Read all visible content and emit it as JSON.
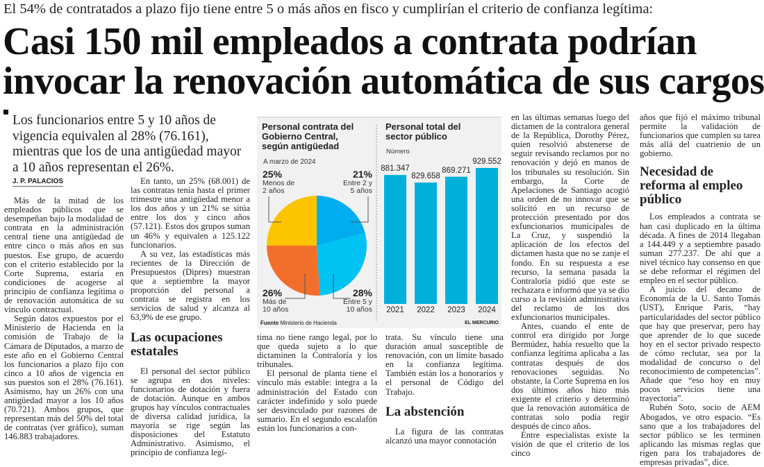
{
  "kicker": "El 54% de contratados a plazo fijo tiene entre 5 o más años en fisco y cumplirían el criterio de confianza legítima:",
  "title": [
    "Casi 150 mil empleados a contrata podrían",
    "invocar la renovación automática de sus cargos"
  ],
  "deck": "Los funcionarios entre 5 y 10 años de vigencia equivalen al 28% (76.161), mientras que los de una antigüedad mayor a 10 años representan el 26%.",
  "byline": "J. P. PALACIOS",
  "col1": [
    "Más de la mitad de los empleados públicos que se desempeñan bajo la modalidad de contrata en la administración central tiene una antigüedad de entre cinco o más años en sus puestos. Ese grupo, de acuerdo con el criterio establecido por la Corte Suprema, estaría en condiciones de acogerse al principio de confianza legítima o de renovación automática de su vínculo contractual.",
    "Según datos expuestos por el Ministerio de Hacienda en la comisión de Trabajo de la Cámara de Diputados, a marzo de este año en el Gobierno Central los funcionarios a plazo fijo con cinco a 10 años de vigencia en sus puestos son el 28% (76.161). Asimismo, hay un 26% con una antigüedad mayor a los 10 años (70.721). Ambos grupos, que representan más del 50% del total de contratas (ver gráfico), suman 146.883 trabajadores."
  ],
  "col2": {
    "p": [
      "En tanto, un 25% (68.001) de las contratas tenía hasta el primer trimestre una antigüedad menor a los dos años y un 21% se sitúa entre los dos y cinco años (57.121). Estos dos grupos suman un 46% y equivalen a 125.122 funcionarios.",
      "A su vez, las estadísticas más recientes de la Dirección de Presupuestos (Dipres) muestran que a septiembre la mayor proporción del personal a contrata se registra en los servicios de salud y alcanza al 63,9% de ese grupo."
    ],
    "heading": "Las ocupaciones estatales",
    "p2": "El personal del sector público se agrupa en dos niveles: funcionarios de dotación y fuera de dotación. Aunque en ambos grupos hay vínculos contractuales de diversa calidad jurídica, la mayoría se rige según las disposiciones del Estatuto Administrativo. Asimismo, el principio de confianza legí-"
  },
  "col3": [
    "tima no tiene rango legal, por lo que queda sujeto a lo que dictaminen la Contraloría y los tribunales.",
    "El personal de planta tiene el vínculo más estable: integra a la administración del Estado con carácter indefinido y solo puede ser desvinculado por razones de sumario. En el segundo escalafón están los funcionarios a con-"
  ],
  "col4": {
    "p": "trata. Su vínculo tiene una duración anual susceptible de renovación, con un límite basado en la confianza legítima. También están los a honorarios y el personal de Código del Trabajo.",
    "heading": "La abstención",
    "p2": "La figura de las contratas alcanzó una mayor connotación"
  },
  "col5": [
    "en las últimas semanas luego del dictamen de la contralora general de la República, Dorothy Pérez, quien resolvió abstenerse de seguir revisando reclamos por no renovación y dejó en manos de los tribunales su resolución. Sin embargo, la Corte de Apelaciones de Santiago acogió una orden de no innovar que se solicitó en un recurso de protección presentado por dos exfuncionarios municipales de La Cruz, y suspendió la aplicación de los efectos del dictamen hasta que no se zanje el fondo. En su respuesta a ese recurso, la semana pasada la Contraloría pidió que este se rechazara e informó que ya se dio curso a la revisión administrativa del reclamo de los dos exfuncionarios municipales.",
    "Antes, cuando el ente de control era dirigido por Jorge Bermúdez, había resuelto que la confianza legítima aplicaba a las contratas después de dos renovaciones seguidas. No obstante, la Corte Suprema en los dos últimos años hizo más exigente el criterio y determinó que la renovación automática de contratas solo podía regir después de cinco años.",
    "Entre especialistas existe la visión de que el criterio de los cinco"
  ],
  "col6": {
    "p": "años que fijó el máximo tribunal permite la validación de funcionarios que cumplen su tarea más allá del cuatrienio de un gobierno.",
    "heading": "Necesidad de reforma al empleo público",
    "p2": [
      "Los empleados a contrata se han casi duplicado en la última década. A fines de 2014 llegaban a 144.449 y a septiembre pasado suman 277.237. De ahí que a nivel técnico hay consenso en que se debe reformar el régimen del empleo en el sector público.",
      "A juicio del decano de Economía de la U. Santo Tomás (UST), Enrique Paris, “hay particularidades del sector público que hay que preservar, pero hay que aprender de lo que sucede hoy en el sector privado respecto de cómo reclutar, sea por la modalidad de concurso o del reconocimiento de competencias”. Añade que “eso hoy en muy pocos servicios tiene una trayectoria”.",
      "Rubén Soto, socio de AEM Abogados, ve otro espacio. “Es sano que a los trabajadores del sector público se les terminen aplicando las mismas reglas que rigen para los trabajadores de empresas privadas”, dice."
    ]
  },
  "chart_data": [
    {
      "type": "pie",
      "title": "Personal contrata del Gobierno Central, según antigüedad",
      "subtitle": "A marzo de 2024",
      "slices": [
        {
          "pct": "21%",
          "value": 21,
          "label": "Entre 2 y 5 años",
          "color": "#00aeef"
        },
        {
          "pct": "28%",
          "value": 28,
          "label": "Entre 5 y 10 años",
          "color": "#00c2f3"
        },
        {
          "pct": "26%",
          "value": 26,
          "label": "Más de 10 años",
          "color": "#f26f2b"
        },
        {
          "pct": "25%",
          "value": 25,
          "label": "Menos de 2 años",
          "color": "#fdc400"
        }
      ]
    },
    {
      "type": "bar",
      "title": "Personal total del sector público",
      "ylabel": "Número",
      "categories": [
        "2021",
        "2022",
        "2023",
        "2024"
      ],
      "values": [
        881347,
        829658,
        869271,
        929552
      ],
      "labels": [
        "881.347",
        "829.658",
        "869.271",
        "929.552"
      ],
      "color": "#00b0da"
    }
  ],
  "source_label": "Fuente",
  "source": "Ministerio de Hacienda",
  "credit": "EL MERCURIO"
}
